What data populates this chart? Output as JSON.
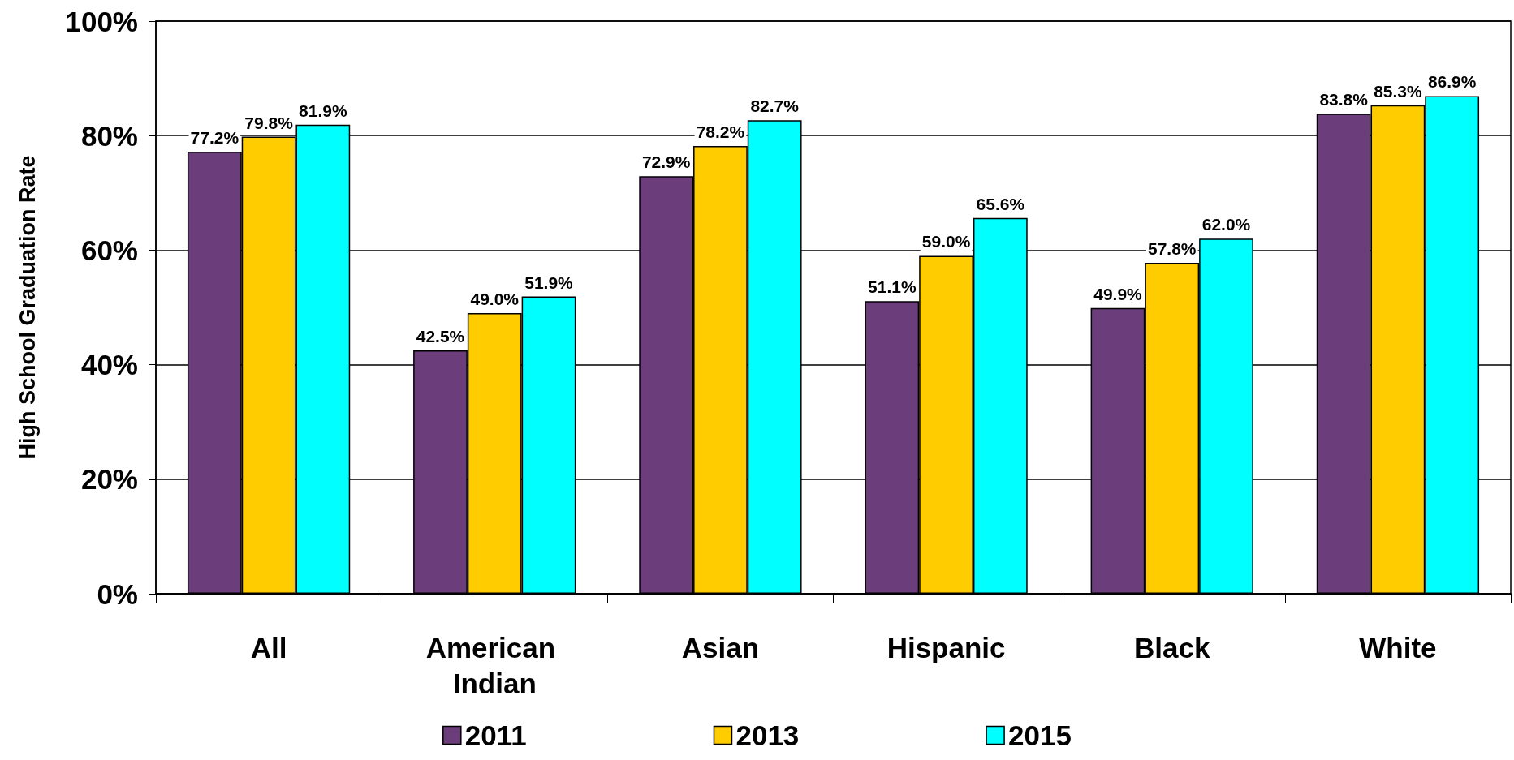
{
  "chart_data": {
    "type": "bar",
    "ylabel": "High School Graduation Rate",
    "categories": [
      "All",
      "American Indian",
      "Asian",
      "Hispanic",
      "Black",
      "White"
    ],
    "series": [
      {
        "name": "2011",
        "color": "#6b3d7b",
        "values": [
          77.2,
          42.5,
          72.9,
          51.1,
          49.9,
          83.8
        ],
        "value_labels": [
          "77.2%",
          "42.5%",
          "72.9%",
          "51.1%",
          "49.9%",
          "83.8%"
        ]
      },
      {
        "name": "2013",
        "color": "#ffcc00",
        "values": [
          79.8,
          49.0,
          78.2,
          59.0,
          57.8,
          85.3
        ],
        "value_labels": [
          "79.8%",
          "49.0%",
          "78.2%",
          "59.0%",
          "57.8%",
          "85.3%"
        ]
      },
      {
        "name": "2015",
        "color": "#00ffff",
        "values": [
          81.9,
          51.9,
          82.7,
          65.6,
          62.0,
          86.9
        ],
        "value_labels": [
          "81.9%",
          "51.9%",
          "82.7%",
          "65.6%",
          "62.0%",
          "86.9%"
        ]
      }
    ],
    "ylim": [
      0,
      100
    ],
    "yticks": [
      {
        "value": 0,
        "label": "0%"
      },
      {
        "value": 20,
        "label": "20%"
      },
      {
        "value": 40,
        "label": "40%"
      },
      {
        "value": 60,
        "label": "60%"
      },
      {
        "value": 80,
        "label": "80%"
      },
      {
        "value": 100,
        "label": "100%"
      }
    ],
    "grid": "y",
    "legend": "bottom"
  }
}
